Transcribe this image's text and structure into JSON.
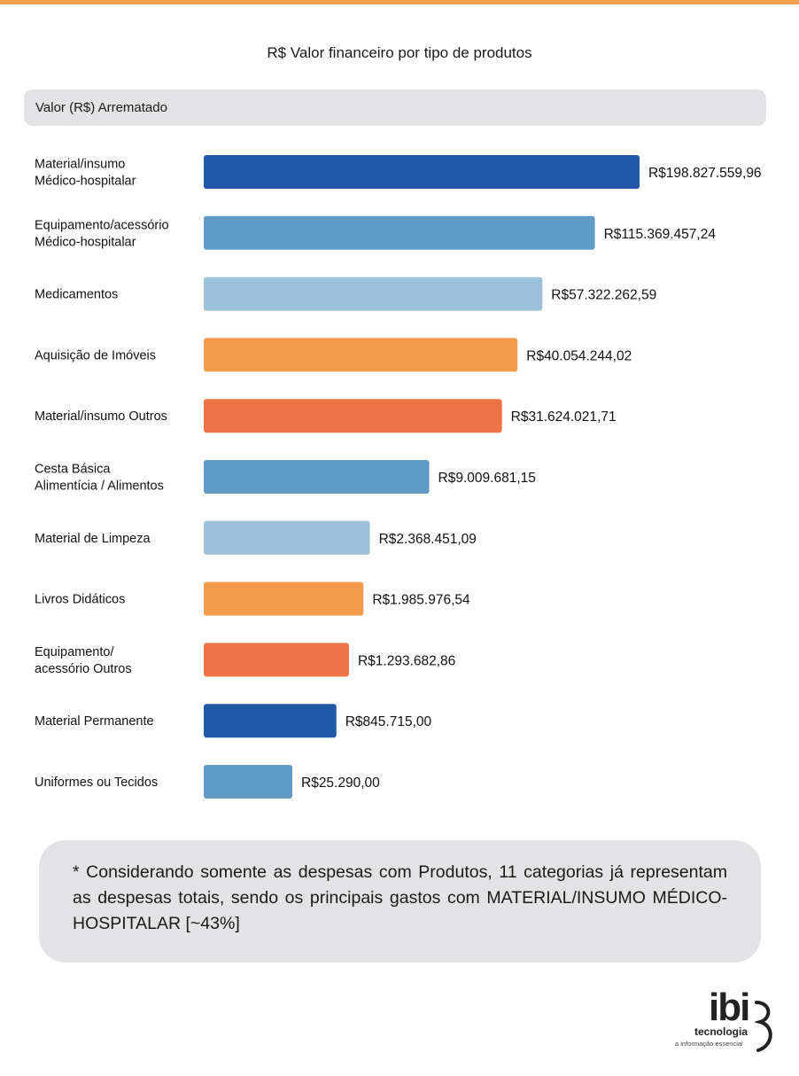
{
  "chart_data": {
    "type": "bar",
    "orientation": "horizontal",
    "title": "R$ Valor financeiro por tipo de produtos",
    "series_label": "Valor (R$) Arrematado",
    "categories": [
      [
        "Material/insumo",
        "Médico-hospitalar"
      ],
      [
        "Equipamento/acessório",
        "Médico-hospitalar"
      ],
      [
        "Medicamentos"
      ],
      [
        "Aquisição de Imóveis"
      ],
      [
        "Material/insumo Outros"
      ],
      [
        "Cesta Básica",
        "Alimentícia / Alimentos"
      ],
      [
        "Material de Limpeza"
      ],
      [
        "Livros Didáticos"
      ],
      [
        "Equipamento/",
        "acessório Outros"
      ],
      [
        "Material Permanente"
      ],
      [
        "Uniformes ou Tecidos"
      ]
    ],
    "values": [
      198827559.96,
      115369457.24,
      57322262.59,
      40054244.02,
      31624021.71,
      9009681.15,
      2368451.09,
      1985976.54,
      1293682.86,
      845715.0,
      25290.0
    ],
    "value_labels": [
      "R$198.827.559,96",
      "R$115.369.457,24",
      "R$57.322.262,59",
      "R$40.054.244,02",
      "R$31.624.021,71",
      "R$9.009.681,15",
      "R$2.368.451,09",
      "R$1.985.976,54",
      "R$1.293.682,86",
      "R$845.715,00",
      "R$25.290,00"
    ],
    "bar_colors": [
      "#2159a6",
      "#5f9bc4",
      "#9ec1da",
      "#f29c4c",
      "#ee7446",
      "#5f9bc4",
      "#9ec1da",
      "#f29c4c",
      "#ee7446",
      "#2159a6",
      "#5f9bc4"
    ],
    "scale": "non-linear (display order)",
    "grid": false,
    "legend": "none"
  },
  "note": {
    "text": "* Considerando somente as despesas com Produtos, 11 categorias já representam as despesas totais, sendo os principais gastos com MATERIAL/INSUMO MÉDICO-HOSPITALAR [~43%]"
  },
  "logo": {
    "mark": "ibi",
    "word": "tecnologia",
    "tagline": "a informação essencial"
  },
  "colors": {
    "top_bar": "#f2a04c",
    "panel": "#e3e3e5"
  }
}
